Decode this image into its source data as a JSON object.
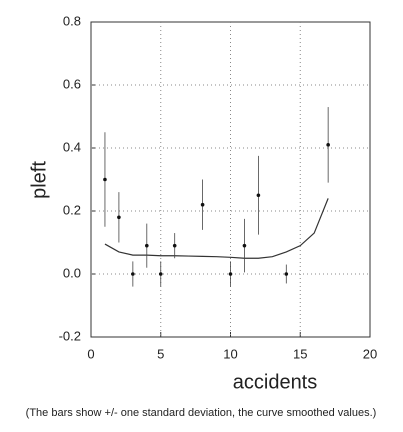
{
  "chart_data": {
    "type": "scatter",
    "x_label": "accidents",
    "y_label": "pleft",
    "caption": "(The bars show +/- one standard deviation, the curve smoothed values.)",
    "x": [
      1,
      2,
      3,
      4,
      5,
      6,
      8,
      10,
      11,
      12,
      14,
      17
    ],
    "values": [
      0.3,
      0.18,
      0.0,
      0.09,
      0.0,
      0.09,
      0.22,
      0.0,
      0.09,
      0.25,
      0.0,
      0.41
    ],
    "errors": [
      0.15,
      0.08,
      0.04,
      0.07,
      0.04,
      0.04,
      0.08,
      0.04,
      0.085,
      0.125,
      0.03,
      0.12
    ],
    "color": "#111111",
    "curve": {
      "x": [
        1,
        2,
        3,
        4,
        5,
        6,
        7,
        8,
        9,
        10,
        11,
        12,
        13,
        14,
        15,
        16,
        17
      ],
      "values": [
        0.095,
        0.07,
        0.06,
        0.06,
        0.058,
        0.058,
        0.057,
        0.056,
        0.055,
        0.053,
        0.05,
        0.05,
        0.055,
        0.07,
        0.09,
        0.13,
        0.24
      ],
      "color": "#333333"
    },
    "xlim": [
      0,
      20
    ],
    "xticks": [
      0,
      5,
      10,
      15,
      20
    ],
    "ylim": [
      -0.2,
      0.8
    ],
    "yticks": [
      -0.2,
      {
        "value": 0,
        "label": "0.0"
      },
      0.2,
      0.4,
      0.6,
      0.8
    ],
    "grid": true
  }
}
